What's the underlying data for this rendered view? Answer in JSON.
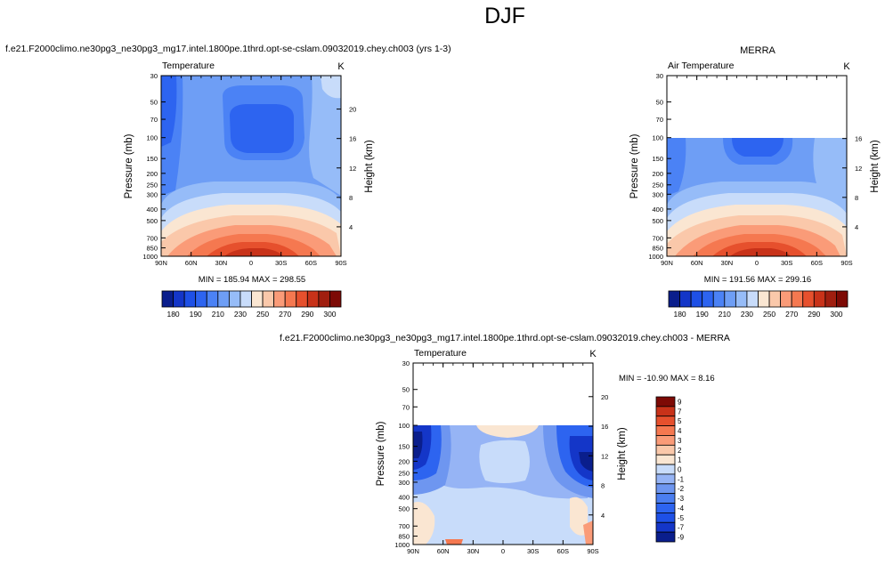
{
  "figure": {
    "title": "DJF",
    "plot_labels": {
      "model_title": "f.e21.F2000climo.ne30pg3_ne30pg3_mg17.intel.1800pe.1thrd.opt-se-cslam.09032019.chey.ch003 (yrs 1-3)",
      "obs_title": "MERRA",
      "diff_title": "f.e21.F2000climo.ne30pg3_ne30pg3_mg17.intel.1800pe.1thrd.opt-se-cslam.09032019.chey.ch003 - MERRA"
    }
  },
  "chart_data": [
    {
      "type": "heatmap",
      "panel": "model",
      "title": "f.e21.F2000climo.ne30pg3_ne30pg3_mg17.intel.1800pe.1thrd.opt-se-cslam.09032019.chey.ch003 (yrs 1-3)",
      "variable": "Temperature",
      "units": "K",
      "xlabel": "",
      "ylabel": "Pressure (mb)",
      "y2label": "Height (km)",
      "x_ticks": [
        "90N",
        "60N",
        "30N",
        "0",
        "30S",
        "60S",
        "90S"
      ],
      "y_ticks": [
        30,
        50,
        70,
        100,
        150,
        200,
        250,
        300,
        400,
        500,
        700,
        850,
        1000
      ],
      "y2_ticks": [
        4,
        8,
        12,
        16,
        20
      ],
      "data_top_mb": 30,
      "stats": {
        "min": "185.94",
        "max": "298.55",
        "text": "MIN = 185.94  MAX = 298.55"
      },
      "contour_levels": [
        180,
        185,
        190,
        200,
        210,
        220,
        230,
        240,
        250,
        260,
        270,
        280,
        290,
        295,
        300
      ],
      "colorbar_labels": [
        "180",
        "190",
        "210",
        "230",
        "250",
        "270",
        "290",
        "300"
      ]
    },
    {
      "type": "heatmap",
      "panel": "obs",
      "title": "MERRA",
      "variable": "Air Temperature",
      "units": "K",
      "xlabel": "",
      "ylabel": "Pressure (mb)",
      "y2label": "Height (km)",
      "x_ticks": [
        "90N",
        "60N",
        "30N",
        "0",
        "30S",
        "60S",
        "90S"
      ],
      "y_ticks": [
        30,
        50,
        70,
        100,
        150,
        200,
        250,
        300,
        400,
        500,
        700,
        850,
        1000
      ],
      "y2_ticks": [
        4,
        8,
        12,
        16
      ],
      "data_top_mb": 100,
      "stats": {
        "min": "191.56",
        "max": "299.16",
        "text": "MIN = 191.56  MAX = 299.16"
      },
      "contour_levels": [
        180,
        185,
        190,
        200,
        210,
        220,
        230,
        240,
        250,
        260,
        270,
        280,
        290,
        295,
        300
      ],
      "colorbar_labels": [
        "180",
        "190",
        "210",
        "230",
        "250",
        "270",
        "290",
        "300"
      ]
    },
    {
      "type": "heatmap",
      "panel": "difference",
      "title": "f.e21.F2000climo.ne30pg3_ne30pg3_mg17.intel.1800pe.1thrd.opt-se-cslam.09032019.chey.ch003 - MERRA",
      "variable": "Temperature",
      "units": "K",
      "xlabel": "",
      "ylabel": "Pressure (mb)",
      "y2label": "Height (km)",
      "x_ticks": [
        "90N",
        "60N",
        "30N",
        "0",
        "30S",
        "60S",
        "90S"
      ],
      "y_ticks": [
        30,
        50,
        70,
        100,
        150,
        200,
        250,
        300,
        400,
        500,
        700,
        850,
        1000
      ],
      "y2_ticks": [
        4,
        8,
        12,
        16,
        20
      ],
      "data_top_mb": 100,
      "stats": {
        "min": "-10.90",
        "max": "8.16",
        "text": "MIN = -10.90  MAX =  8.16"
      },
      "contour_levels": [
        -9,
        -7,
        -5,
        -4,
        -3,
        -2,
        -1,
        0,
        1,
        2,
        3,
        4,
        5,
        7,
        9
      ],
      "colorbar_labels": [
        "9",
        "7",
        "5",
        "4",
        "3",
        "2",
        "1",
        "0",
        "-1",
        "-2",
        "-3",
        "-4",
        "-5",
        "-7",
        "-9"
      ]
    }
  ],
  "colors": {
    "abs_scale": [
      "#0a1e8c",
      "#1436c8",
      "#1e50e6",
      "#2d64f0",
      "#4b82f5",
      "#6e9ef5",
      "#96bcf8",
      "#c8dcfa",
      "#fae6d2",
      "#fac8aa",
      "#fa9b78",
      "#f57850",
      "#e6502d",
      "#c83219",
      "#a01e0f",
      "#7d0a05"
    ],
    "diff_scale": [
      "#0a1e8c",
      "#1436c8",
      "#1e50e6",
      "#2d64f0",
      "#4b7ef0",
      "#6e96f0",
      "#96b4f5",
      "#c8dcfa",
      "#fae6d2",
      "#fac8aa",
      "#fa9b78",
      "#f57850",
      "#e6502d",
      "#c83219",
      "#7d0a05"
    ]
  }
}
